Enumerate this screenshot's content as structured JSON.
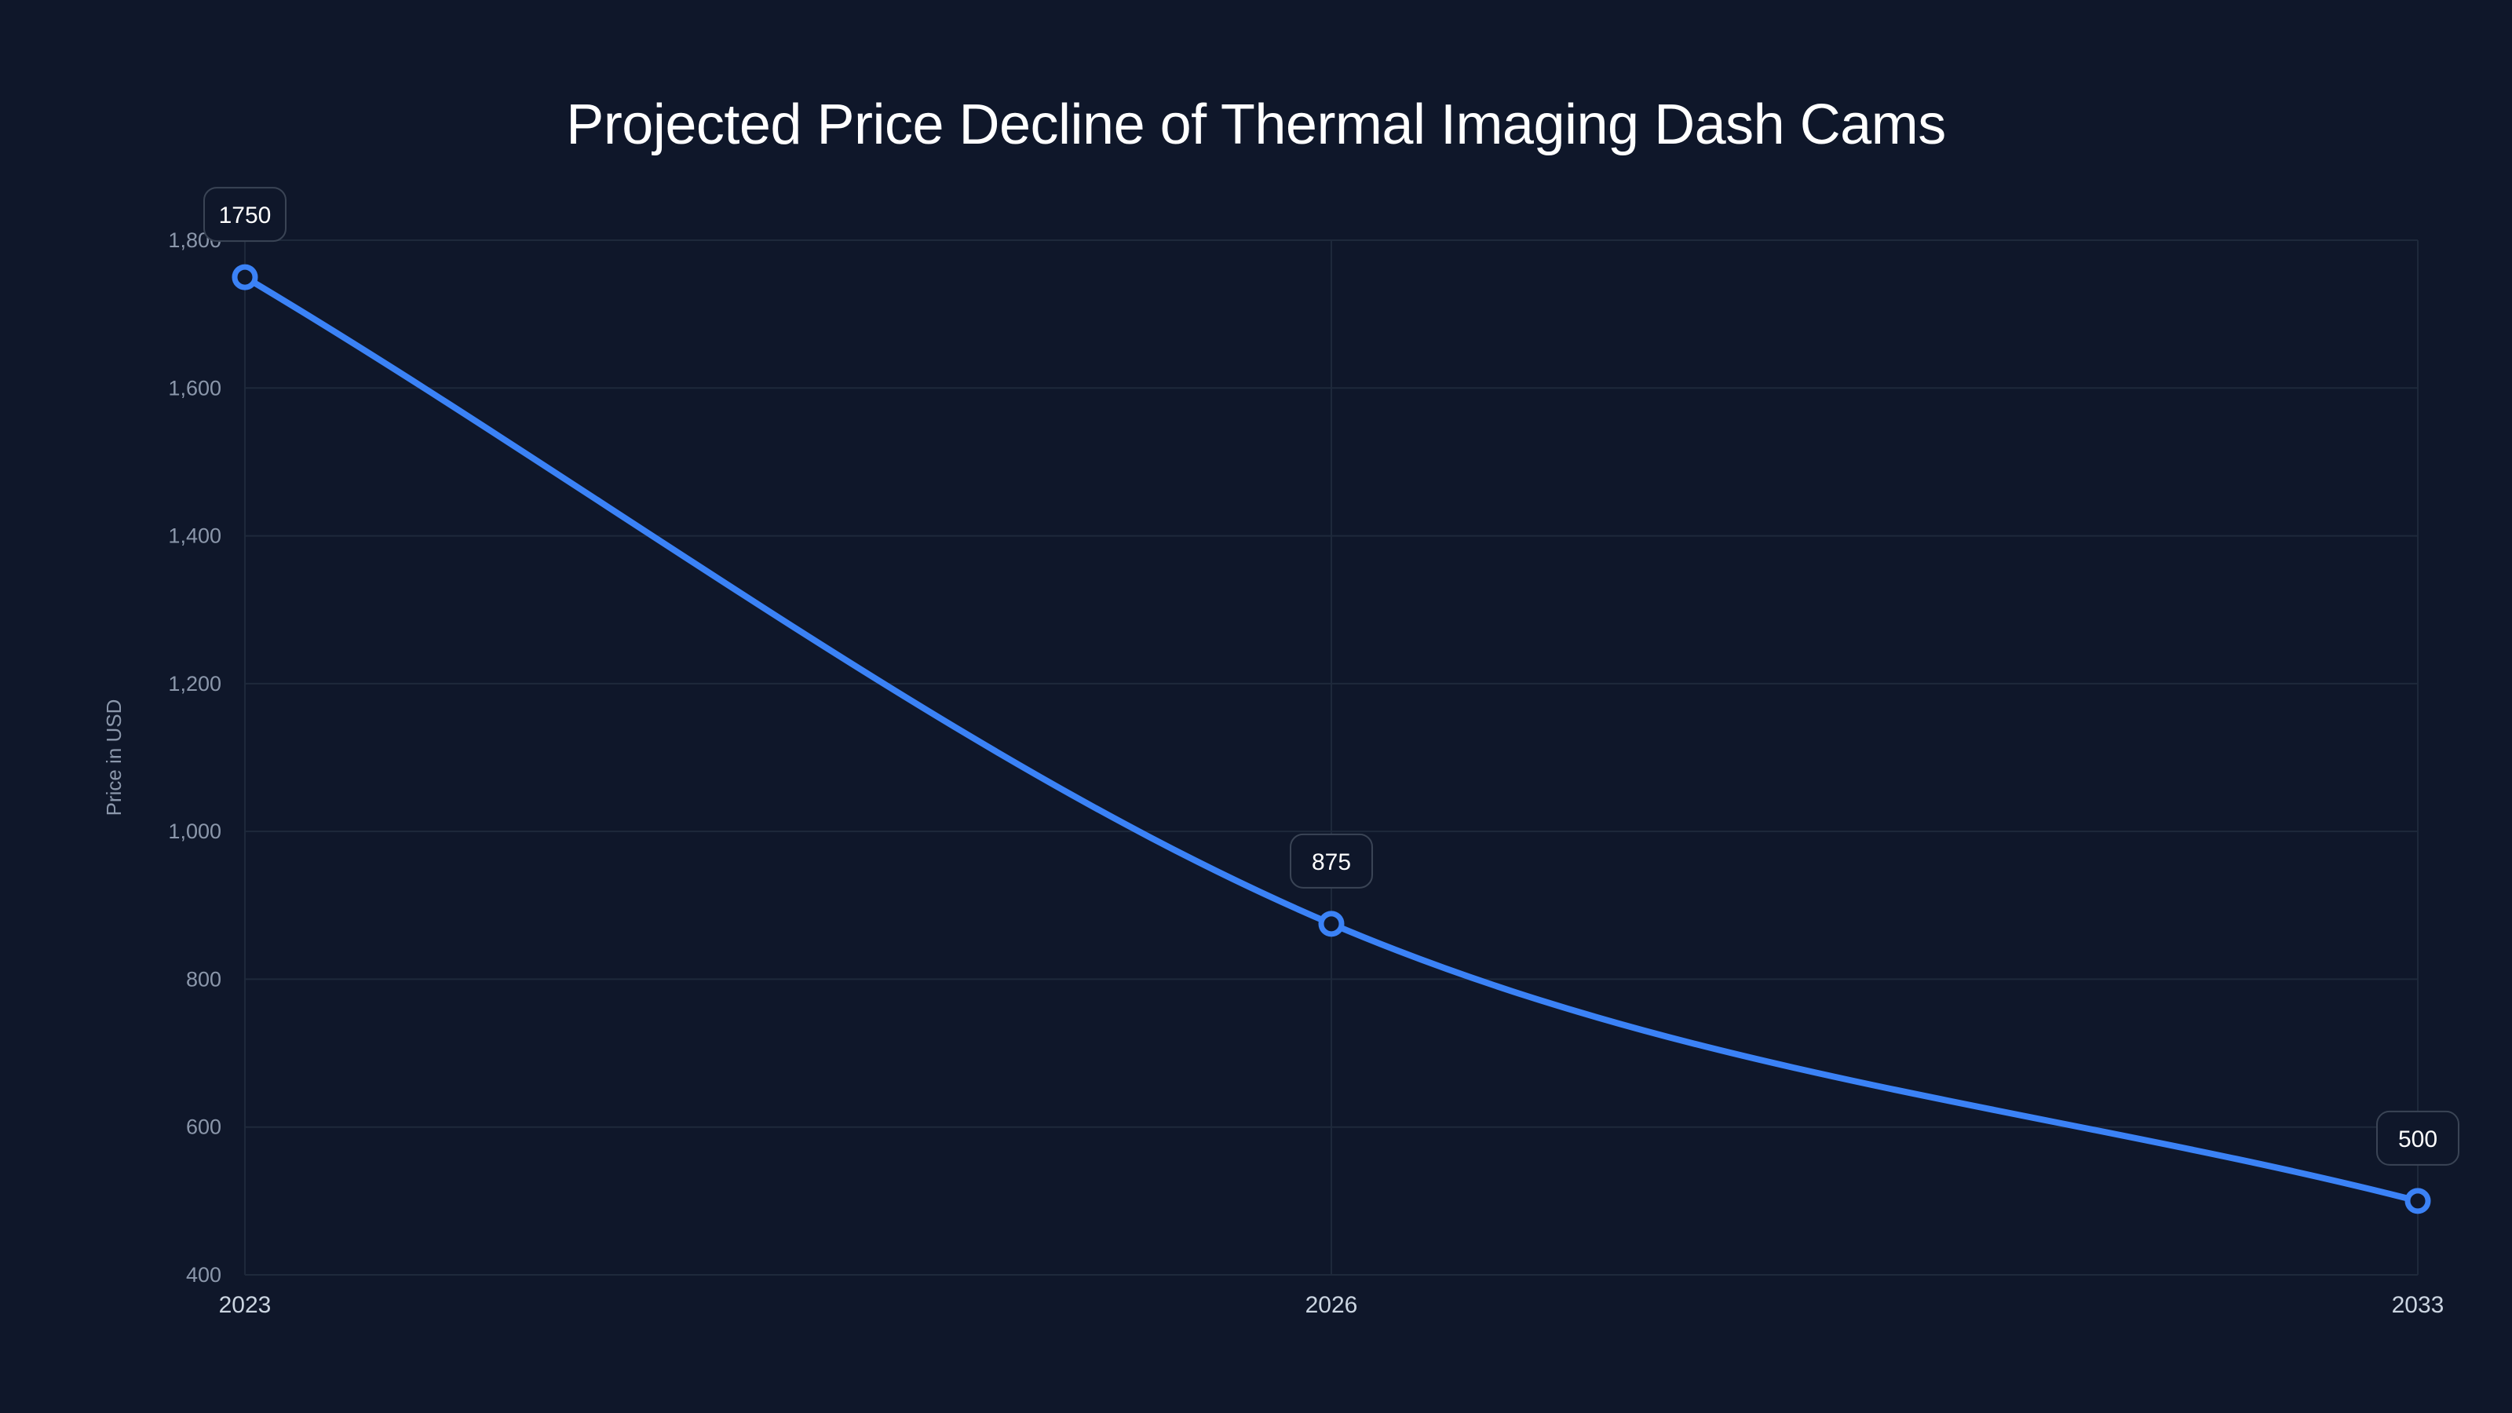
{
  "chart_data": {
    "type": "line",
    "title": "Projected Price Decline of Thermal Imaging Dash Cams",
    "xlabel": "",
    "ylabel": "Price in USD",
    "categories": [
      "2023",
      "2026",
      "2033"
    ],
    "series": [
      {
        "name": "Price",
        "values": [
          1750,
          875,
          500
        ],
        "color": "#3b82f6"
      }
    ],
    "ylim": [
      400,
      1800
    ],
    "yticks": [
      400,
      600,
      800,
      1000,
      1200,
      1400,
      1600,
      1800
    ],
    "ytick_labels": [
      "400",
      "600",
      "800",
      "1,000",
      "1,200",
      "1,400",
      "1,600",
      "1,800"
    ],
    "data_labels": [
      "1750",
      "875",
      "500"
    ],
    "grid": true,
    "legend": null,
    "smooth": true
  },
  "colors": {
    "background": "#0f172a",
    "line": "#3b82f6",
    "grid": "#1e293b",
    "label_box_border": "#3a4455"
  }
}
